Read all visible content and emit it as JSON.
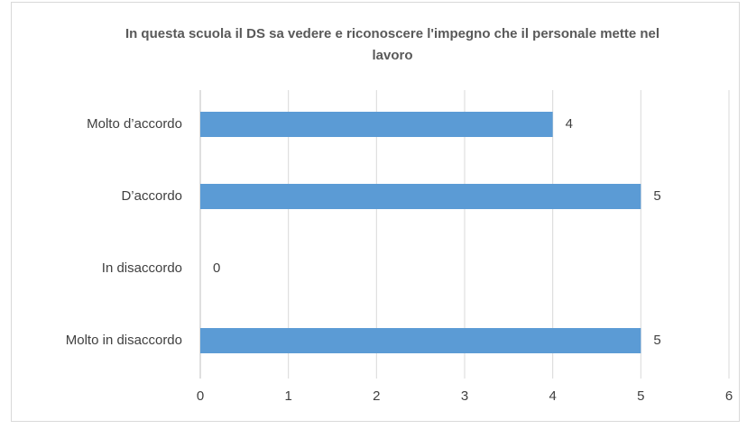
{
  "chart_data": {
    "type": "bar",
    "orientation": "horizontal",
    "title": "In questa scuola il DS sa vedere e riconoscere l'impegno che il personale mette nel lavoro",
    "categories": [
      "Molto d’accordo",
      "D’accordo",
      "In disaccordo",
      "Molto in disaccordo"
    ],
    "values": [
      4,
      5,
      0,
      5
    ],
    "color": "#5b9bd5",
    "xlim": [
      0,
      6
    ],
    "xticks": [
      0,
      1,
      2,
      3,
      4,
      5,
      6
    ],
    "grid": true
  }
}
